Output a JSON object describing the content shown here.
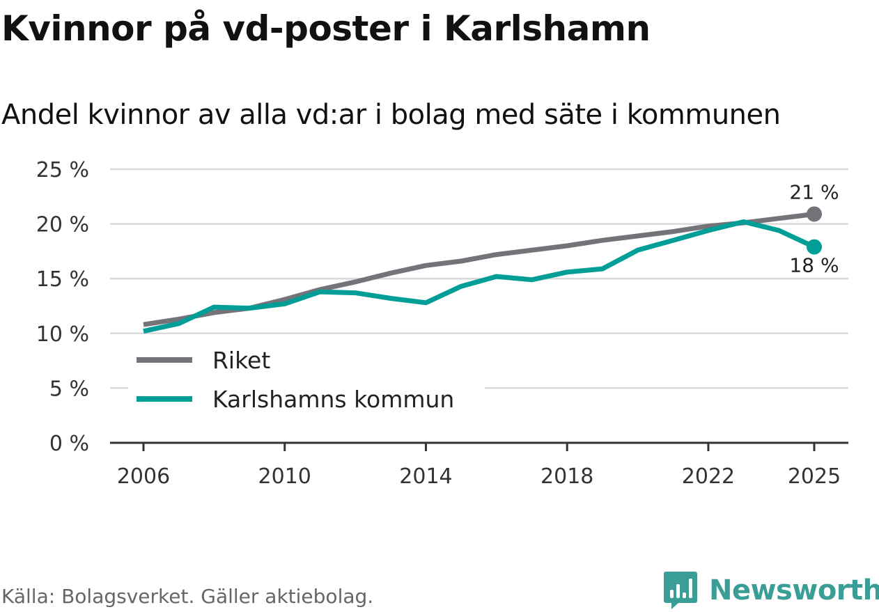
{
  "chart_data": {
    "type": "line",
    "title": "Kvinnor på vd-poster i Karlshamn",
    "subtitle": "Andel kvinnor av alla vd:ar i bolag med säte i kommunen",
    "x": [
      2006,
      2007,
      2008,
      2009,
      2010,
      2011,
      2012,
      2013,
      2014,
      2015,
      2016,
      2017,
      2018,
      2019,
      2020,
      2021,
      2022,
      2023,
      2024,
      2025
    ],
    "series": [
      {
        "name": "Riket",
        "color": "#74737a",
        "values": [
          10.8,
          11.3,
          11.9,
          12.3,
          13.1,
          14.0,
          14.7,
          15.5,
          16.2,
          16.6,
          17.2,
          17.6,
          18.0,
          18.5,
          18.9,
          19.3,
          19.8,
          20.1,
          20.5,
          20.9
        ],
        "end_label": "21 %"
      },
      {
        "name": "Karlshamns kommun",
        "color": "#009e96",
        "values": [
          10.2,
          10.9,
          12.4,
          12.3,
          12.7,
          13.8,
          13.7,
          13.2,
          12.8,
          14.3,
          15.2,
          14.9,
          15.6,
          15.9,
          17.6,
          18.5,
          19.4,
          20.2,
          19.4,
          17.9
        ],
        "end_label": "18 %"
      }
    ],
    "ylim": [
      0,
      25
    ],
    "yticks": [
      0,
      5,
      10,
      15,
      20,
      25
    ],
    "ytick_labels": [
      "0 %",
      "5 %",
      "10 %",
      "15 %",
      "20 %",
      "25 %"
    ],
    "xticks": [
      2006,
      2010,
      2014,
      2018,
      2022,
      2025
    ],
    "xtick_labels": [
      "2006",
      "2010",
      "2014",
      "2018",
      "2022",
      "2025"
    ],
    "legend_position": "bottom-left",
    "grid": true
  },
  "source": "Källa: Bolagsverket. Gäller aktiebolag.",
  "brand": "Newsworthy",
  "brand_color": "#3a9e97"
}
